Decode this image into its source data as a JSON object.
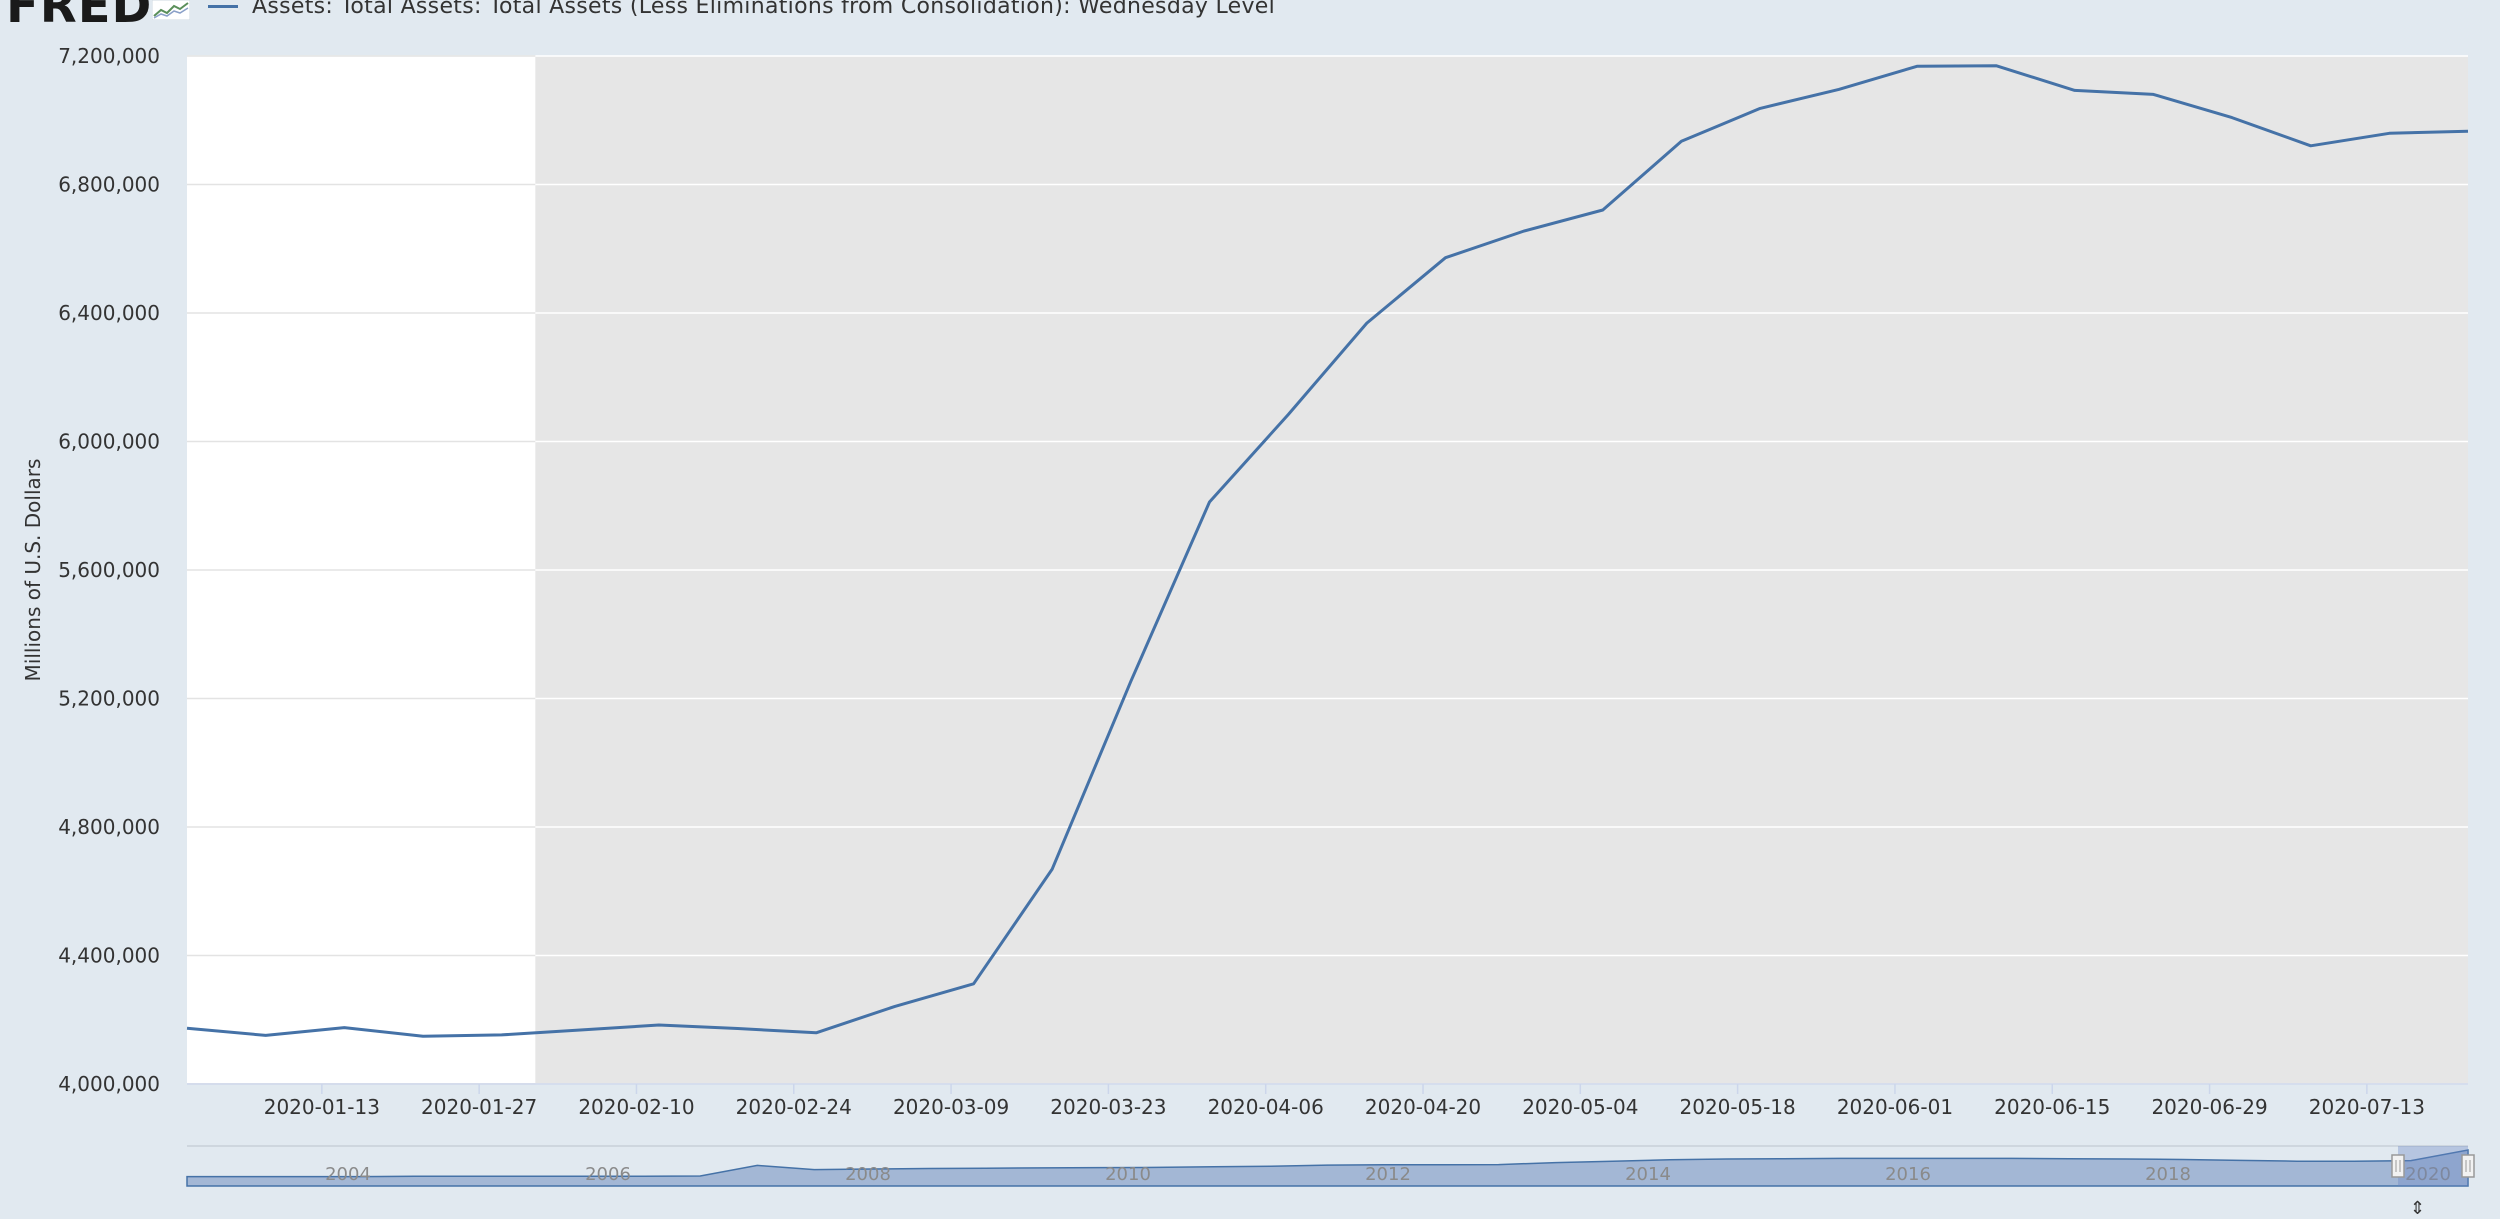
{
  "header": {
    "logo_text": "FRED",
    "legend_label": "Assets: Total Assets: Total Assets (Less Eliminations from Consolidation): Wednesday Level"
  },
  "colors": {
    "series_line": "#4572a7",
    "plot_shade": "#e6e6e6",
    "plot_white": "#ffffff",
    "page_background": "#e1e9f0",
    "navigator_fill": "#98aed0"
  },
  "chart_data": {
    "type": "line",
    "title": "",
    "xlabel": "",
    "ylabel": "Millions of U.S. Dollars",
    "ylim": [
      4000000,
      7200000
    ],
    "y_ticks": [
      "4,000,000",
      "4,400,000",
      "4,800,000",
      "5,200,000",
      "5,600,000",
      "6,000,000",
      "6,400,000",
      "6,800,000",
      "7,200,000"
    ],
    "y_tick_values": [
      4000000,
      4400000,
      4800000,
      5200000,
      5600000,
      6000000,
      6400000,
      6800000,
      7200000
    ],
    "x_ticks": [
      "2020-01-13",
      "2020-01-27",
      "2020-02-10",
      "2020-02-24",
      "2020-03-09",
      "2020-03-23",
      "2020-04-06",
      "2020-04-20",
      "2020-05-04",
      "2020-05-18",
      "2020-06-01",
      "2020-06-15",
      "2020-06-29",
      "2020-07-13"
    ],
    "xlim": [
      "2020-01-01",
      "2020-07-22"
    ],
    "shaded_region_start": "2020-02-01",
    "series": [
      {
        "name": "Assets: Total Assets: Total Assets (Less Eliminations from Consolidation): Wednesday Level",
        "x": [
          "2020-01-01",
          "2020-01-08",
          "2020-01-15",
          "2020-01-22",
          "2020-01-29",
          "2020-02-05",
          "2020-02-12",
          "2020-02-19",
          "2020-02-26",
          "2020-03-04",
          "2020-03-11",
          "2020-03-18",
          "2020-03-25",
          "2020-04-01",
          "2020-04-08",
          "2020-04-15",
          "2020-04-22",
          "2020-04-29",
          "2020-05-06",
          "2020-05-13",
          "2020-05-20",
          "2020-05-27",
          "2020-06-03",
          "2020-06-10",
          "2020-06-17",
          "2020-06-24",
          "2020-07-01",
          "2020-07-08",
          "2020-07-15",
          "2020-07-22"
        ],
        "y": [
          4173600,
          4151300,
          4175500,
          4148700,
          4152900,
          4168000,
          4183600,
          4172800,
          4159400,
          4241700,
          4311800,
          4668900,
          5254000,
          5811800,
          6083800,
          6368600,
          6572100,
          6655400,
          6720600,
          6934600,
          7036900,
          7096000,
          7168200,
          7169800,
          7093000,
          7080400,
          7008400,
          6920400,
          6959500,
          6965900
        ]
      }
    ],
    "navigator": {
      "year_labels": [
        "2004",
        "2006",
        "2008",
        "2010",
        "2012",
        "2014",
        "2016",
        "2018",
        "2020"
      ],
      "profile": [
        0.05,
        0.05,
        0.05,
        0.05,
        0.06,
        0.06,
        0.06,
        0.06,
        0.06,
        0.07,
        0.45,
        0.3,
        0.32,
        0.34,
        0.35,
        0.36,
        0.37,
        0.38,
        0.4,
        0.42,
        0.46,
        0.47,
        0.47,
        0.48,
        0.55,
        0.6,
        0.65,
        0.68,
        0.69,
        0.7,
        0.7,
        0.7,
        0.7,
        0.69,
        0.68,
        0.66,
        0.63,
        0.6,
        0.6,
        0.62,
        1.0
      ]
    }
  }
}
